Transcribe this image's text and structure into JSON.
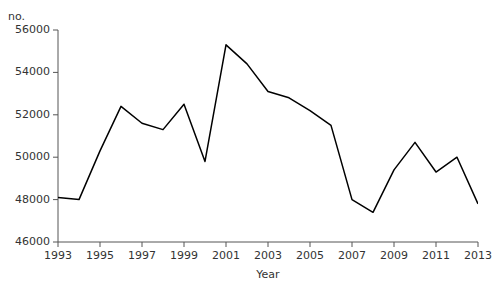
{
  "chart_data": {
    "type": "line",
    "x": [
      1993,
      1994,
      1995,
      1996,
      1997,
      1998,
      1999,
      2000,
      2001,
      2002,
      2003,
      2004,
      2005,
      2006,
      2007,
      2008,
      2009,
      2010,
      2011,
      2012,
      2013
    ],
    "values": [
      48100,
      48000,
      50300,
      52400,
      51600,
      51300,
      52500,
      49800,
      55300,
      54400,
      53100,
      52800,
      52200,
      51500,
      48000,
      47400,
      49400,
      50700,
      49300,
      50000,
      47800
    ],
    "xlabel": "Year",
    "ylabel": "no.",
    "xlim": [
      1993,
      2013
    ],
    "ylim": [
      46000,
      56000
    ],
    "xticks": [
      1993,
      1995,
      1997,
      1999,
      2001,
      2003,
      2005,
      2007,
      2009,
      2011,
      2013
    ],
    "yticks": [
      46000,
      48000,
      50000,
      52000,
      54000,
      56000
    ],
    "color": "#000000"
  }
}
